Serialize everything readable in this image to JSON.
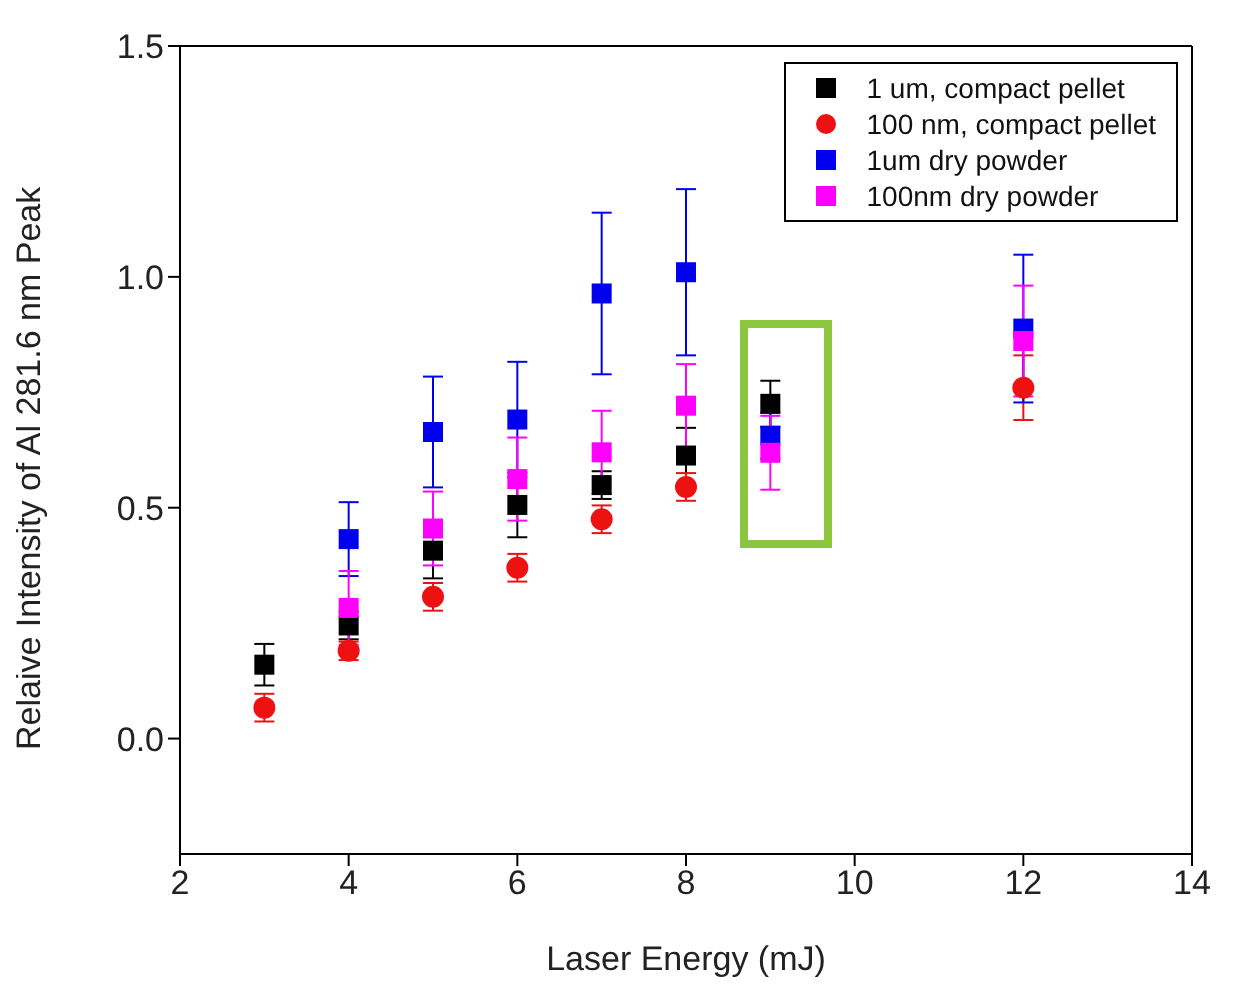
{
  "chart_data": {
    "type": "scatter",
    "xlabel": "Laser Energy (mJ)",
    "ylabel": "Relaive Intensity of Al 281.6 nm Peak",
    "xlim": [
      2,
      14
    ],
    "xticks": [
      2,
      4,
      6,
      8,
      10,
      12,
      14
    ],
    "ylim": [
      -0.25,
      1.5
    ],
    "yticks": [
      {
        "value": 0,
        "label": "0.0"
      },
      0.5,
      {
        "value": 1,
        "label": "1.0"
      },
      1.5
    ],
    "legend": "top right",
    "series": [
      {
        "name": "1 um, compact pellet",
        "color": "#000000",
        "marker": "square",
        "x": [
          3,
          4,
          5,
          6,
          7,
          8,
          9
        ],
        "values": [
          0.16,
          0.245,
          0.407,
          0.506,
          0.549,
          0.613,
          0.725
        ],
        "errors": [
          0.045,
          0.03,
          0.06,
          0.07,
          0.03,
          0.06,
          0.05
        ]
      },
      {
        "name": "100 nm, compact pellet",
        "color": "#ee1111",
        "marker": "circle",
        "x": [
          3,
          4,
          5,
          6,
          7,
          8,
          12
        ],
        "values": [
          0.067,
          0.19,
          0.307,
          0.37,
          0.475,
          0.545,
          0.76
        ],
        "errors": [
          0.03,
          0.02,
          0.03,
          0.03,
          0.03,
          0.03,
          0.07
        ]
      },
      {
        "name": "1um dry powder",
        "color": "#0000ee",
        "marker": "square",
        "x": [
          4,
          5,
          6,
          7,
          8,
          9,
          12
        ],
        "values": [
          0.432,
          0.664,
          0.691,
          0.964,
          1.01,
          0.656,
          0.888
        ],
        "errors": [
          0.08,
          0.12,
          0.125,
          0.175,
          0.18,
          0.05,
          0.16
        ]
      },
      {
        "name": "100nm dry powder",
        "color": "#ff00ff",
        "marker": "square",
        "x": [
          4,
          5,
          6,
          7,
          8,
          9,
          12
        ],
        "values": [
          0.283,
          0.455,
          0.562,
          0.62,
          0.721,
          0.619,
          0.861
        ],
        "errors": [
          0.08,
          0.08,
          0.09,
          0.09,
          0.09,
          0.08,
          0.12
        ]
      }
    ]
  }
}
